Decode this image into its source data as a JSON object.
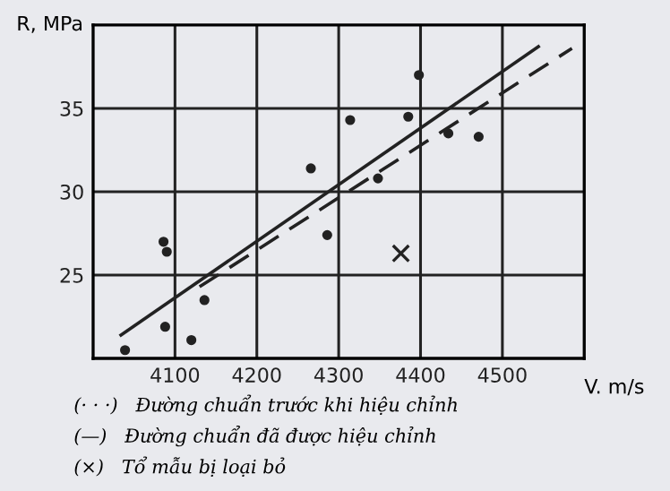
{
  "chart_data": {
    "type": "scatter",
    "xlabel": "V. m/s",
    "ylabel": "R, MPa",
    "xlim": [
      4000,
      4600
    ],
    "ylim": [
      20,
      40
    ],
    "xticks": [
      4100,
      4200,
      4300,
      4400,
      4500
    ],
    "yticks": [
      25,
      30,
      35
    ],
    "grid": true,
    "legend": false,
    "series": [
      {
        "marker": "circle",
        "color": "#222222",
        "x": [
          4039,
          4086,
          4090,
          4088,
          4120,
          4136,
          4266,
          4286,
          4314,
          4348,
          4385,
          4398,
          4434,
          4471
        ],
        "values": [
          20.5,
          27.0,
          26.4,
          21.9,
          21.1,
          23.5,
          31.4,
          27.4,
          34.3,
          30.8,
          34.5,
          37.0,
          33.5,
          33.3
        ]
      },
      {
        "type": "scatter",
        "marker": "cross",
        "color": "#222222",
        "x": [
          4376
        ],
        "values": [
          26.3
        ]
      },
      {
        "type": "line",
        "line_style": "solid",
        "color": "#222222",
        "x": [
          4034,
          4544
        ],
        "values": [
          21.4,
          38.7
        ]
      },
      {
        "type": "line",
        "line_style": "dashed",
        "color": "#222222",
        "x": [
          4130,
          4585
        ],
        "values": [
          24.3,
          38.6
        ]
      }
    ],
    "annotations": [
      "(· · ·)   Đường chuẩn trước khi hiệu chỉnh",
      "(—)   Đường chuẩn đã được hiệu chỉnh",
      "(×)   Tổ mẫu bị loại bỏ"
    ]
  }
}
